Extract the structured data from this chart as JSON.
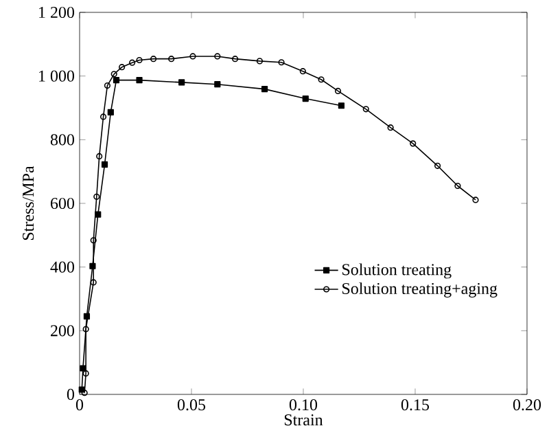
{
  "chart_data": {
    "type": "line",
    "xlabel": "Strain",
    "ylabel": "Stress/MPa",
    "xlim": [
      0,
      0.2
    ],
    "xticks": [
      {
        "value": 0,
        "label": "0"
      },
      0.05,
      {
        "value": 0.1,
        "label": "0.10"
      },
      0.15,
      {
        "value": 0.2,
        "label": "0.20"
      }
    ],
    "ylim": [
      0,
      1200
    ],
    "yticks": [
      0,
      200,
      400,
      600,
      800,
      {
        "value": 1000,
        "label": "1 000"
      },
      {
        "value": 1200,
        "label": "1 200"
      }
    ],
    "legend": "right",
    "grid": false,
    "line_style": "solid",
    "series": [
      {
        "name": "Solution treating",
        "color": "#000000",
        "marker": "square",
        "x": [
          0.001,
          0.0015,
          0.0032,
          0.0058,
          0.0082,
          0.0112,
          0.0139,
          0.0164,
          0.0267,
          0.0456,
          0.0616,
          0.0827,
          0.101,
          0.117
        ],
        "values": [
          15,
          82,
          245,
          403,
          565,
          722,
          886,
          987,
          987,
          980,
          974,
          959,
          929,
          907
        ]
      },
      {
        "name": "Solution treating+aging",
        "color": "#000000",
        "marker": "circle",
        "x": [
          0.0022,
          0.0028,
          0.0028,
          0.0062,
          0.0062,
          0.0076,
          0.0088,
          0.0106,
          0.0124,
          0.0154,
          0.0189,
          0.0235,
          0.0267,
          0.033,
          0.041,
          0.0506,
          0.0616,
          0.0695,
          0.0805,
          0.0902,
          0.0998,
          0.108,
          0.1155,
          0.128,
          0.139,
          0.149,
          0.16,
          0.169,
          0.177
        ],
        "values": [
          5,
          66,
          205,
          352,
          484,
          621,
          748,
          872,
          970,
          1006,
          1028,
          1042,
          1050,
          1054,
          1054,
          1062,
          1062,
          1054,
          1047,
          1043,
          1015,
          989,
          953,
          896,
          838,
          788,
          718,
          655,
          611
        ]
      }
    ]
  }
}
